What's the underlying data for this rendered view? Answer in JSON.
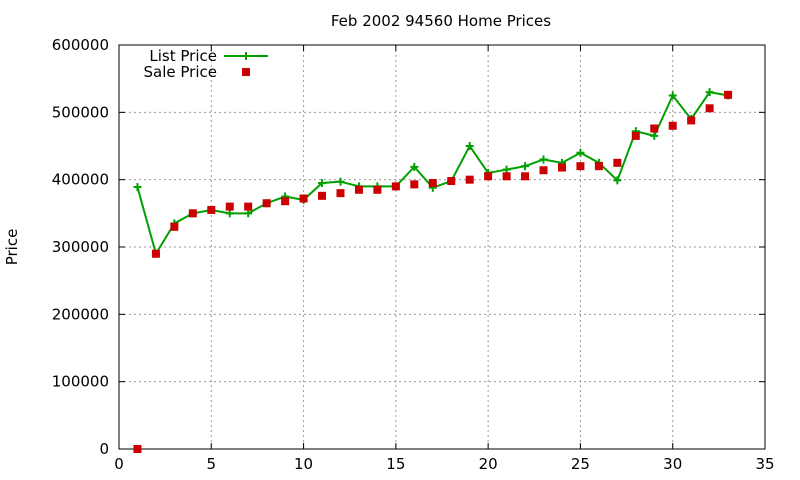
{
  "chart_data": {
    "type": "line",
    "title": "Feb 2002 94560 Home Prices",
    "xlabel": "",
    "ylabel": "Price",
    "xlim": [
      0,
      35
    ],
    "ylim": [
      0,
      600000
    ],
    "x_ticks": [
      "0",
      "5",
      "10",
      "15",
      "20",
      "25",
      "30",
      "35"
    ],
    "y_ticks": [
      "0",
      "100000",
      "200000",
      "300000",
      "400000",
      "500000",
      "600000"
    ],
    "grid": true,
    "legend_position": "top-left",
    "series": [
      {
        "name": "List Price",
        "style": "line-with-plus-markers",
        "color": "#00a000",
        "x": [
          1,
          2,
          3,
          4,
          5,
          6,
          7,
          8,
          9,
          10,
          11,
          12,
          13,
          14,
          15,
          16,
          17,
          18,
          19,
          20,
          21,
          22,
          23,
          24,
          25,
          26,
          27,
          28,
          29,
          30,
          31,
          32,
          33
        ],
        "values": [
          389000,
          290000,
          335000,
          350000,
          355000,
          350000,
          350000,
          365000,
          375000,
          370000,
          395000,
          397000,
          390000,
          390000,
          390000,
          419000,
          388000,
          398000,
          450000,
          410000,
          415000,
          420000,
          430000,
          425000,
          440000,
          425000,
          399000,
          472000,
          465000,
          525000,
          490000,
          530000,
          525000
        ]
      },
      {
        "name": "Sale Price",
        "style": "square-markers",
        "color": "#cc0000",
        "x": [
          1,
          2,
          3,
          4,
          5,
          6,
          7,
          8,
          9,
          10,
          11,
          12,
          13,
          14,
          15,
          16,
          17,
          18,
          19,
          20,
          21,
          22,
          23,
          24,
          25,
          26,
          27,
          28,
          29,
          30,
          31,
          32,
          33
        ],
        "values": [
          0,
          290000,
          330000,
          350000,
          355000,
          360000,
          360000,
          365000,
          368000,
          372000,
          376000,
          380000,
          385000,
          385000,
          390000,
          393000,
          395000,
          398000,
          400000,
          405000,
          405000,
          405000,
          414000,
          418000,
          420000,
          420000,
          425000,
          465000,
          476000,
          480000,
          488000,
          506000,
          526000
        ]
      }
    ]
  }
}
